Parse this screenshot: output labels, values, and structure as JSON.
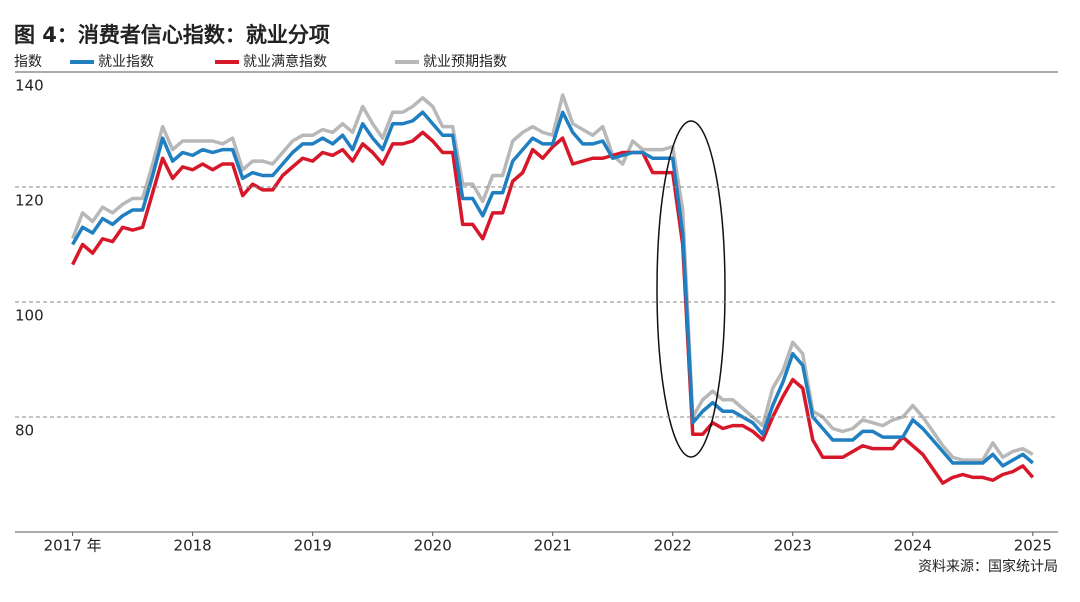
{
  "chart_data": {
    "type": "line",
    "title": "图 4：消费者信心指数：就业分项",
    "ylabel": "指数",
    "source": "资料来源：国家统计局",
    "x": [
      2017,
      2017.083,
      2017.167,
      2017.25,
      2017.333,
      2017.417,
      2017.5,
      2017.583,
      2017.667,
      2017.75,
      2017.833,
      2017.917,
      2018,
      2018.083,
      2018.167,
      2018.25,
      2018.333,
      2018.417,
      2018.5,
      2018.583,
      2018.667,
      2018.75,
      2018.833,
      2018.917,
      2019,
      2019.083,
      2019.167,
      2019.25,
      2019.333,
      2019.417,
      2019.5,
      2019.583,
      2019.667,
      2019.75,
      2019.833,
      2019.917,
      2020,
      2020.083,
      2020.167,
      2020.25,
      2020.333,
      2020.417,
      2020.5,
      2020.583,
      2020.667,
      2020.75,
      2020.833,
      2020.917,
      2021,
      2021.083,
      2021.167,
      2021.25,
      2021.333,
      2021.417,
      2021.5,
      2021.583,
      2021.667,
      2021.75,
      2021.833,
      2021.917,
      2022,
      2022.083,
      2022.167,
      2022.25,
      2022.333,
      2022.417,
      2022.5,
      2022.583,
      2022.667,
      2022.75,
      2022.833,
      2022.917,
      2023,
      2023.083,
      2023.167,
      2023.25,
      2023.333,
      2023.417,
      2023.5,
      2023.583,
      2023.667,
      2023.75,
      2023.833,
      2023.917,
      2024,
      2024.083,
      2024.167,
      2024.25,
      2024.333,
      2024.417,
      2024.5,
      2024.583,
      2024.667,
      2024.75,
      2024.833,
      2024.917,
      2025
    ],
    "series": [
      {
        "name": "就业指数",
        "color": "#1f7fc0",
        "values": [
          110,
          113,
          112,
          114.5,
          113.5,
          115,
          116,
          116,
          122,
          128.5,
          124.5,
          126,
          125.5,
          126.5,
          126,
          126.5,
          126.5,
          121.5,
          122.5,
          122,
          122,
          124,
          126,
          127.5,
          127.5,
          128.5,
          127.5,
          129,
          126.5,
          131,
          128.5,
          126.5,
          131,
          131,
          131.5,
          133,
          131,
          129,
          129,
          118,
          118,
          115,
          119,
          119,
          124.5,
          126.5,
          128.5,
          127.5,
          127.5,
          133,
          129.5,
          127.5,
          127.5,
          128,
          125,
          125.5,
          126,
          126,
          125,
          125,
          125,
          112,
          79,
          81,
          82.5,
          81,
          81,
          80,
          79,
          77,
          82,
          86,
          91,
          89,
          80,
          78,
          76,
          76,
          76,
          77.5,
          77.5,
          76.5,
          76.5,
          76.5,
          79.5,
          78,
          76,
          74,
          72,
          72,
          72,
          72,
          73.5,
          71.5,
          72.5,
          73.5,
          72
        ]
      },
      {
        "name": "就业满意指数",
        "color": "#d7182a",
        "values": [
          106.5,
          110,
          108.5,
          111,
          110.5,
          113,
          112.5,
          113,
          119,
          125,
          121.5,
          123.5,
          123,
          124,
          123,
          124,
          124,
          118.5,
          120.5,
          119.5,
          119.5,
          122,
          123.5,
          125,
          124.5,
          126,
          125.5,
          126.5,
          124.5,
          127.5,
          126,
          124,
          127.5,
          127.5,
          128,
          129.5,
          128,
          126,
          126,
          113.5,
          113.5,
          111,
          115.5,
          115.5,
          121,
          122.5,
          126.5,
          125,
          127,
          128.5,
          124,
          124.5,
          125,
          125,
          125.5,
          126,
          126,
          126,
          122.5,
          122.5,
          122.5,
          110,
          77,
          77,
          79,
          78,
          78.5,
          78.5,
          77.5,
          76,
          80,
          83.5,
          86.5,
          85,
          76,
          73,
          73,
          73,
          74,
          75,
          74.5,
          74.5,
          74.5,
          76.5,
          75,
          73.5,
          71,
          68.5,
          69.5,
          70,
          69.5,
          69.5,
          69,
          70,
          70.5,
          71.5,
          69.5
        ]
      },
      {
        "name": "就业预期指数",
        "color": "#b8b8b8",
        "values": [
          111,
          115.5,
          114,
          116.5,
          115.5,
          117,
          118,
          118,
          124,
          130.5,
          126.5,
          128,
          128,
          128,
          128,
          127.5,
          128.5,
          123,
          124.5,
          124.5,
          124,
          126,
          128,
          129,
          129,
          130,
          129.5,
          131,
          129.5,
          134,
          131,
          128.5,
          133,
          133,
          134,
          135.5,
          134,
          130.5,
          130.5,
          120.5,
          120.5,
          117.5,
          122,
          122,
          128,
          129.5,
          130.5,
          129.5,
          129,
          136,
          131,
          130,
          129,
          130.5,
          125.5,
          124,
          128,
          126.5,
          126.5,
          126.5,
          127,
          116,
          80,
          83,
          84.5,
          83,
          83,
          81.5,
          80,
          78.5,
          85,
          88,
          93,
          91,
          81,
          80,
          78,
          77.5,
          78,
          79.5,
          79,
          78.5,
          79.5,
          80,
          82,
          80,
          77.5,
          75,
          73,
          72.5,
          72.5,
          72.5,
          75.5,
          73,
          74,
          74.5,
          73.5
        ]
      }
    ],
    "xlim": [
      2016.52,
      2025.21
    ],
    "xticks": [
      {
        "value": 2017,
        "label": "2017 年"
      },
      2018,
      2019,
      2020,
      2021,
      2022,
      2023,
      2024,
      2025
    ],
    "ylim": [
      60,
      140
    ],
    "yticks": [
      80,
      100,
      120,
      140
    ],
    "grid": true
  }
}
